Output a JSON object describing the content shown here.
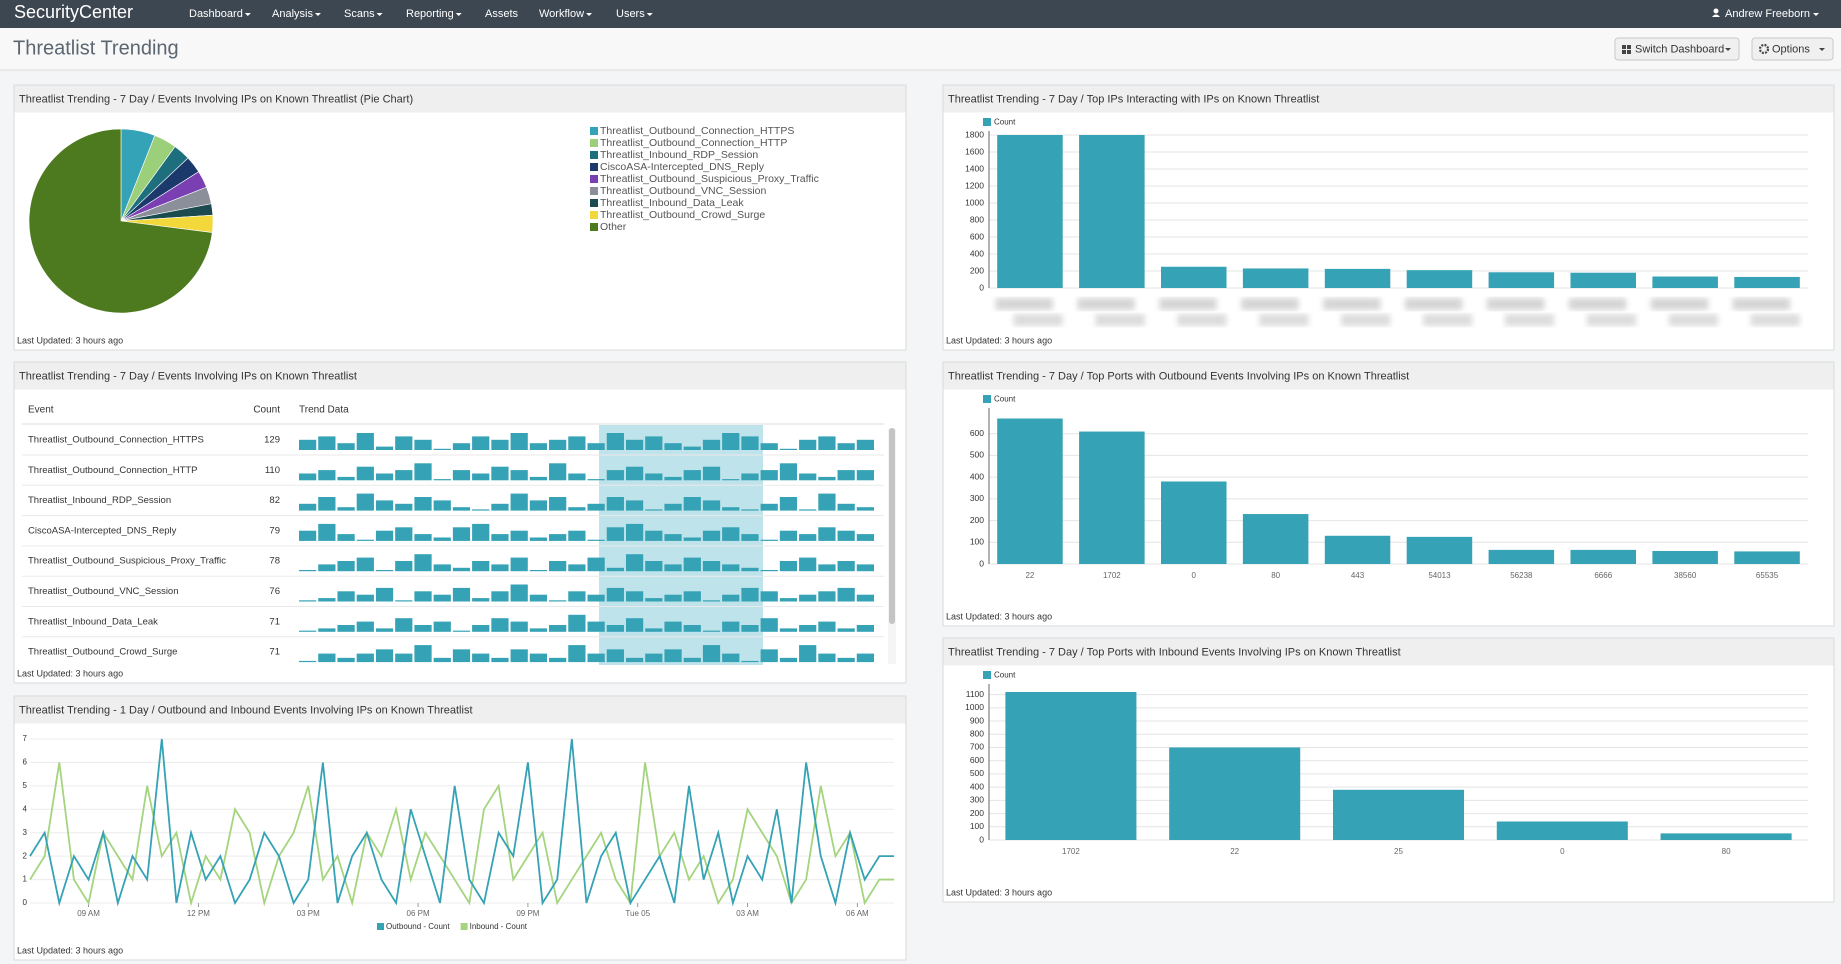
{
  "nav": {
    "brand": "SecurityCenter",
    "menu": [
      "Dashboard",
      "Analysis",
      "Scans",
      "Reporting",
      "Assets",
      "Workflow",
      "Users"
    ],
    "user": "Andrew Freeborn"
  },
  "header": {
    "title": "Threatlist Trending",
    "buttons": [
      "Switch Dashboard",
      "Options"
    ]
  },
  "panels": [
    {
      "title": "Threatlist Trending - 7 Day / Events Involving IPs on Known Threatlist (Pie Chart)",
      "footer": "Last Updated: 3 hours ago",
      "chart_data": {
        "type": "pie",
        "categories": [
          "Threatlist_Outbound_Connection_HTTPS",
          "Threatlist_Outbound_Connection_HTTP",
          "Threatlist_Inbound_RDP_Session",
          "CiscoASA-Intercepted_DNS_Reply",
          "Threatlist_Outbound_Suspicious_Proxy_Traffic",
          "Threatlist_Outbound_VNC_Session",
          "Threatlist_Inbound_Data_Leak",
          "Threatlist_Outbound_Crowd_Surge",
          "Other"
        ],
        "values": [
          6,
          4,
          3,
          3,
          3,
          3,
          2,
          3,
          73
        ],
        "colors": [
          "#34a3b8",
          "#9ccf7a",
          "#1d6f7e",
          "#1b3a6b",
          "#7a3fb3",
          "#8a8f99",
          "#1c4b4f",
          "#f3d83c",
          "#4e7a1f"
        ]
      }
    },
    {
      "title": "Threatlist Trending - 7 Day / Top IPs Interacting with IPs on Known Threatlist",
      "footer": "Last Updated: 3 hours ago",
      "chart_data": {
        "type": "bar",
        "categories": [
          null,
          null,
          null,
          null,
          null,
          null,
          null,
          null,
          null,
          null
        ],
        "series": [
          {
            "name": "Count",
            "color": "#35a2b5",
            "values": [
              1800,
              1800,
              250,
              230,
              225,
              210,
              185,
              180,
              135,
              130
            ]
          }
        ],
        "ylim": [
          0,
          1800
        ],
        "yticks": [
          0,
          200,
          400,
          600,
          800,
          1000,
          1200,
          1400,
          1600,
          1800
        ],
        "grid": true
      }
    },
    {
      "title": "Threatlist Trending - 7 Day / Events Involving IPs on Known Threatlist",
      "footer": "Last Updated: 3 hours ago",
      "table": {
        "columns": [
          "Event",
          "Count",
          "Trend Data"
        ],
        "rows": [
          {
            "event": "Threatlist_Outbound_Connection_HTTPS",
            "count": 129,
            "trend": [
              3,
              4,
              2,
              5,
              1,
              4,
              3,
              0,
              2,
              4,
              3,
              5,
              2,
              3,
              4,
              2,
              5,
              3,
              4,
              2,
              1,
              3,
              5,
              4,
              2,
              0,
              3,
              4,
              2,
              3
            ]
          },
          {
            "event": "Threatlist_Outbound_Connection_HTTP",
            "count": 110,
            "trend": [
              2,
              3,
              1,
              4,
              2,
              3,
              5,
              0,
              3,
              2,
              4,
              3,
              1,
              5,
              2,
              0,
              3,
              4,
              2,
              1,
              3,
              4,
              0,
              2,
              3,
              5,
              2,
              1,
              3,
              3
            ]
          },
          {
            "event": "Threatlist_Inbound_RDP_Session",
            "count": 82,
            "trend": [
              2,
              4,
              1,
              5,
              3,
              2,
              4,
              3,
              1,
              0,
              2,
              5,
              3,
              4,
              1,
              2,
              4,
              3,
              0,
              2,
              4,
              3,
              1,
              0,
              2,
              4,
              0,
              5,
              2,
              1
            ]
          },
          {
            "event": "CiscoASA-Intercepted_DNS_Reply",
            "count": 79,
            "trend": [
              3,
              5,
              2,
              0,
              3,
              4,
              2,
              1,
              4,
              5,
              2,
              3,
              1,
              2,
              3,
              0,
              4,
              5,
              3,
              2,
              1,
              3,
              4,
              2,
              0,
              3,
              2,
              4,
              3,
              2
            ]
          },
          {
            "event": "Threatlist_Outbound_Suspicious_Proxy_Traffic",
            "count": 78,
            "trend": [
              0,
              2,
              3,
              4,
              0,
              3,
              5,
              2,
              1,
              3,
              2,
              4,
              0,
              3,
              2,
              4,
              1,
              5,
              3,
              2,
              4,
              3,
              2,
              1,
              0,
              3,
              4,
              2,
              3,
              2
            ]
          },
          {
            "event": "Threatlist_Outbound_VNC_Session",
            "count": 76,
            "trend": [
              0,
              1,
              3,
              2,
              4,
              0,
              3,
              2,
              4,
              1,
              3,
              5,
              2,
              0,
              3,
              2,
              4,
              3,
              1,
              2,
              3,
              0,
              2,
              4,
              3,
              1,
              2,
              3,
              4,
              2
            ]
          },
          {
            "event": "Threatlist_Inbound_Data_Leak",
            "count": 71,
            "trend": [
              0,
              1,
              2,
              3,
              1,
              4,
              2,
              3,
              0,
              2,
              4,
              3,
              1,
              2,
              5,
              3,
              2,
              4,
              1,
              3,
              2,
              0,
              3,
              2,
              4,
              1,
              2,
              3,
              1,
              2
            ]
          },
          {
            "event": "Threatlist_Outbound_Crowd_Surge",
            "count": 71,
            "trend": [
              0,
              2,
              1,
              2,
              3,
              2,
              4,
              1,
              3,
              2,
              1,
              3,
              2,
              1,
              4,
              2,
              3,
              1,
              2,
              3,
              1,
              4,
              2,
              0,
              3,
              1,
              4,
              2,
              1,
              2
            ]
          }
        ]
      }
    },
    {
      "title": "Threatlist Trending - 7 Day / Top Ports with Outbound Events Involving IPs on Known Threatlist",
      "footer": "Last Updated: 3 hours ago",
      "chart_data": {
        "type": "bar",
        "categories": [
          "22",
          "1702",
          "0",
          "80",
          "443",
          "54013",
          "56238",
          "6666",
          "38560",
          "65535"
        ],
        "series": [
          {
            "name": "Count",
            "color": "#35a2b5",
            "values": [
              670,
              610,
              380,
              230,
              130,
              125,
              65,
              65,
              60,
              58
            ]
          }
        ],
        "ylim": [
          0,
          700
        ],
        "yticks": [
          0,
          100,
          200,
          300,
          400,
          500,
          600
        ],
        "grid": true
      }
    },
    {
      "title": "Threatlist Trending - 1 Day / Outbound and Inbound Events Involving IPs on Known Threatlist",
      "footer": "Last Updated: 3 hours ago",
      "chart_data": {
        "type": "line",
        "series": [
          {
            "name": "Outbound - Count",
            "color": "#35a2b5",
            "values": [
              2,
              3,
              0,
              2,
              1,
              3,
              0,
              2,
              1,
              7,
              0,
              3,
              1,
              2,
              0,
              1,
              3,
              2,
              0,
              1,
              6,
              0,
              2,
              3,
              1,
              0,
              4,
              2,
              0,
              5,
              1,
              0,
              3,
              2,
              6,
              0,
              1,
              7,
              0,
              2,
              3,
              0,
              1,
              2,
              0,
              5,
              1,
              3,
              0,
              2,
              1,
              4,
              0,
              6,
              2,
              0,
              3,
              1,
              2,
              2
            ]
          },
          {
            "name": "Inbound - Count",
            "color": "#a5d47f",
            "values": [
              1,
              2,
              6,
              1,
              0,
              3,
              2,
              1,
              5,
              2,
              3,
              0,
              2,
              1,
              4,
              3,
              0,
              2,
              3,
              5,
              1,
              2,
              0,
              3,
              2,
              4,
              1,
              3,
              2,
              1,
              0,
              4,
              5,
              1,
              2,
              3,
              0,
              1,
              2,
              3,
              1,
              0,
              6,
              2,
              3,
              1,
              2,
              0,
              1,
              4,
              3,
              2,
              0,
              1,
              5,
              2,
              3,
              0,
              1,
              1
            ]
          }
        ],
        "xlim": [
          0,
          59
        ],
        "xticks": [
          {
            "value": 4,
            "label": "09 AM"
          },
          {
            "value": 11.5,
            "label": "12 PM"
          },
          {
            "value": 19,
            "label": "03 PM"
          },
          {
            "value": 26.5,
            "label": "06 PM"
          },
          {
            "value": 34,
            "label": "09 PM"
          },
          {
            "value": 41.5,
            "label": "Tue 05"
          },
          {
            "value": 49,
            "label": "03 AM"
          },
          {
            "value": 56.5,
            "label": "06 AM"
          }
        ],
        "ylim": [
          0,
          7
        ],
        "yticks": [
          0,
          1,
          2,
          3,
          4,
          5,
          6,
          7
        ],
        "grid": true
      }
    },
    {
      "title": "Threatlist Trending - 7 Day / Top Ports with Inbound Events Involving IPs on Known Threatlist",
      "footer": "Last Updated: 3 hours ago",
      "chart_data": {
        "type": "bar",
        "categories": [
          "1702",
          "22",
          "25",
          "0",
          "80"
        ],
        "series": [
          {
            "name": "Count",
            "color": "#35a2b5",
            "values": [
              1120,
              700,
              380,
              140,
              50
            ]
          }
        ],
        "ylim": [
          0,
          1150
        ],
        "yticks": [
          0,
          100,
          200,
          300,
          400,
          500,
          600,
          700,
          800,
          900,
          1000,
          1100
        ],
        "grid": true
      }
    }
  ]
}
